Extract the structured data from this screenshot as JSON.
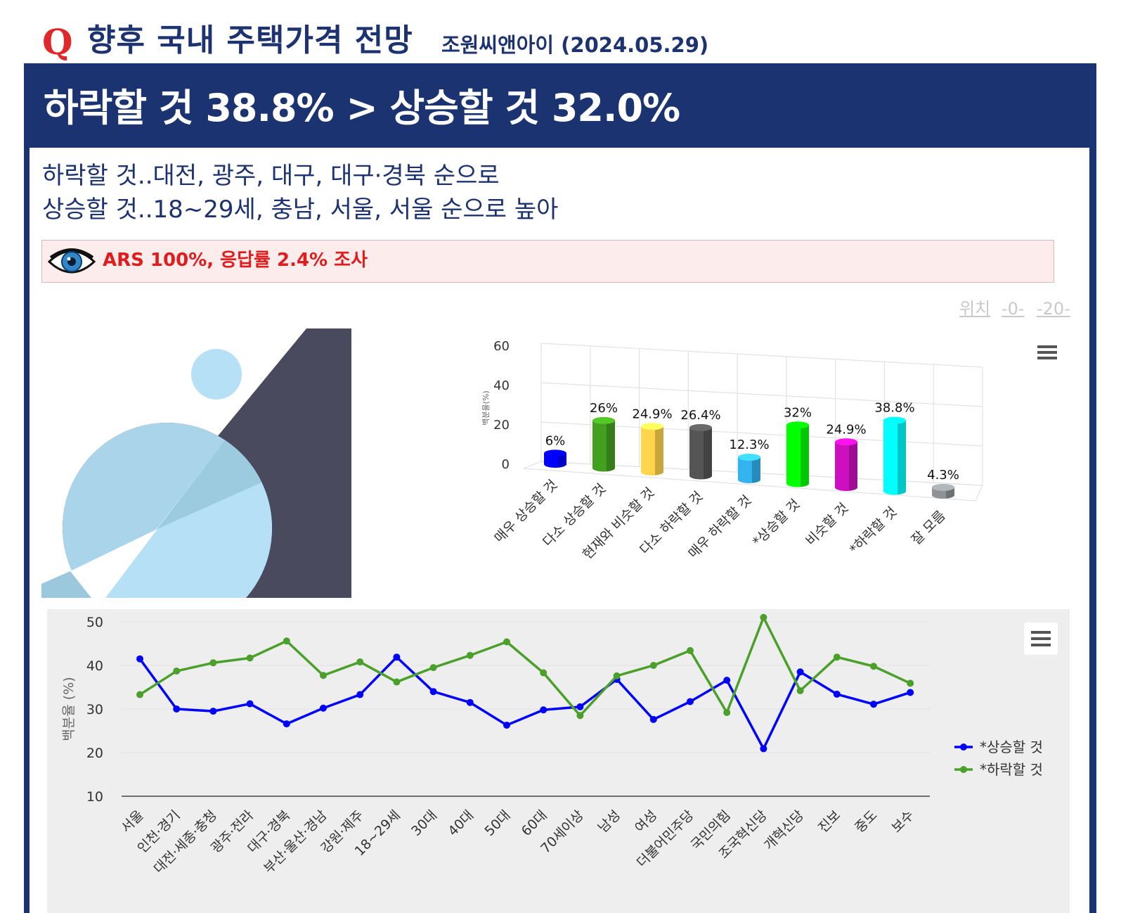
{
  "header": {
    "q_mark": "Q",
    "title": "향후 국내 주택가격 전망",
    "source": "조원씨앤아이 (2024.05.29)"
  },
  "headline": "하락할 것 38.8% > 상승할 것 32.0%",
  "subheadlines": [
    "하락할 것..대전, 광주, 대구, 대구·경북 순으로",
    "상승할 것..18~29세, 충남, 서울, 서울 순으로 높아"
  ],
  "note": "ARS 100%, 응답률 2.4% 조사",
  "position_links": [
    "위치",
    "-0-",
    "-20-"
  ],
  "icons": {
    "eye": "eye-icon",
    "menu": "hamburger-menu-icon"
  },
  "chart_data": [
    {
      "type": "bar",
      "ylabel": "백분율(%)",
      "ylim": [
        0,
        60
      ],
      "yticks": [
        0,
        20,
        40,
        60
      ],
      "categories": [
        "매우 상승할 것",
        "다소 상승할 것",
        "현재와 비슷할 것",
        "다소 하락할 것",
        "매우 하락할 것",
        "*상승할 것",
        "비슷할 것",
        "*하락할 것",
        "잘 모름"
      ],
      "values": [
        6,
        26,
        24.9,
        26.4,
        12.3,
        32,
        24.9,
        38.8,
        4.3
      ],
      "data_labels": [
        "6%",
        "26%",
        "24.9%",
        "26.4%",
        "12.3%",
        "32%",
        "24.9%",
        "38.8%",
        "4.3%"
      ],
      "colors": [
        "#0000ff",
        "#43a01f",
        "#ffd54d",
        "#555555",
        "#33b4ee",
        "#00ff00",
        "#cc0fbf",
        "#00ffff",
        "#8e9296"
      ]
    },
    {
      "type": "line",
      "ylabel": "백분율 (%)",
      "ylim": [
        10,
        50
      ],
      "yticks": [
        10,
        20,
        30,
        40,
        50
      ],
      "categories": [
        "서울",
        "인천·경기",
        "대전·세종·충청",
        "광주·전라",
        "대구·경북",
        "부산·울산·경남",
        "강원·제주",
        "18~29세",
        "30대",
        "40대",
        "50대",
        "60대",
        "70세이상",
        "남성",
        "여성",
        "더불어민주당",
        "국민의힘",
        "조국혁신당",
        "개혁신당",
        "진보",
        "중도",
        "보수"
      ],
      "series": [
        {
          "name": "*상승할 것",
          "color": "#0000ff",
          "values": [
            41.5,
            30,
            29.5,
            31.2,
            26.6,
            30.2,
            33.3,
            41.9,
            34,
            31.5,
            26.3,
            29.8,
            30.5,
            36.8,
            27.6,
            31.7,
            36.6,
            20.9,
            38.5,
            33.4,
            31.1,
            33.8
          ]
        },
        {
          "name": "*하락할 것",
          "color": "#4aa02a",
          "values": [
            33.3,
            38.7,
            40.6,
            41.7,
            45.6,
            37.7,
            40.8,
            36.2,
            39.5,
            42.3,
            45.4,
            38.3,
            28.5,
            37.6,
            40,
            43.4,
            29.2,
            51,
            34.2,
            41.9,
            39.8,
            35.9
          ]
        }
      ]
    }
  ]
}
